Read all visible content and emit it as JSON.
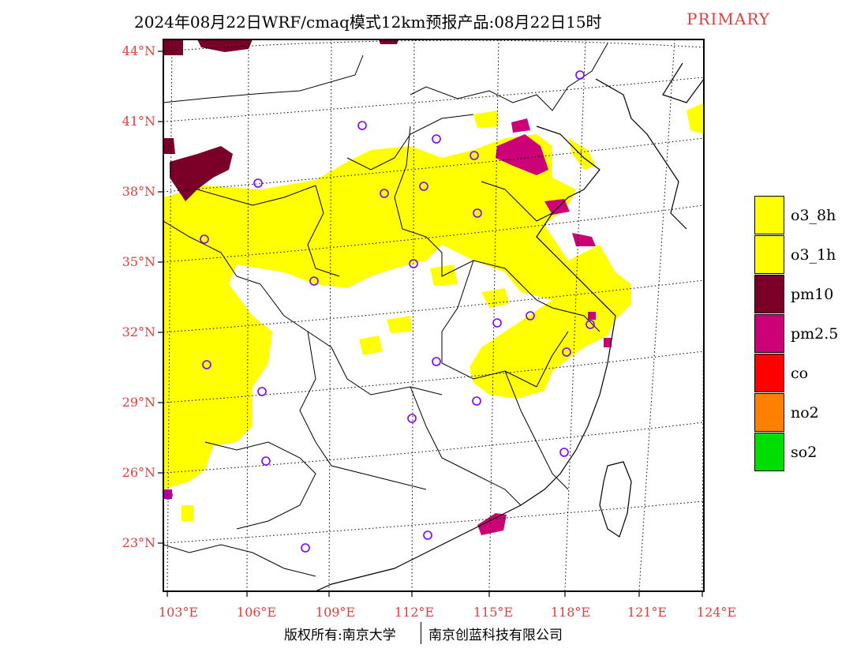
{
  "title": {
    "main": "2024年08月22日WRF/cmaq模式12km预报产品:08月22日15时",
    "tag": "PRIMARY"
  },
  "axes": {
    "lat_labels": [
      "44°N",
      "41°N",
      "38°N",
      "35°N",
      "32°N",
      "29°N",
      "26°N",
      "23°N"
    ],
    "lon_labels": [
      "103°E",
      "106°E",
      "109°E",
      "112°E",
      "115°E",
      "118°E",
      "121°E",
      "124°E"
    ]
  },
  "legend": {
    "items": [
      {
        "label": "o3_8h",
        "color": "#ffff00"
      },
      {
        "label": "o3_1h",
        "color": "#ffff00"
      },
      {
        "label": "pm10",
        "color": "#7a0028"
      },
      {
        "label": "pm2.5",
        "color": "#cc0077"
      },
      {
        "label": "co",
        "color": "#ff0000"
      },
      {
        "label": "no2",
        "color": "#ff8000"
      },
      {
        "label": "so2",
        "color": "#00dd00"
      }
    ]
  },
  "footer": {
    "left": "版权所有:南京大学",
    "right": "南京创蓝科技有限公司"
  },
  "colors": {
    "o3": "#ffff00",
    "pm10": "#7a0028",
    "pm25": "#cc0077",
    "station": "#8000ff",
    "axis_label": "#e04040"
  }
}
